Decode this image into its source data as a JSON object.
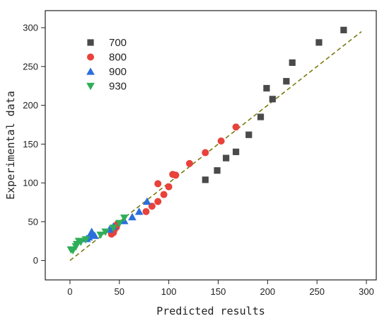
{
  "chart_data": {
    "type": "scatter",
    "xlabel": "Predicted results",
    "ylabel": "Experimental data",
    "xlim": [
      -25,
      310
    ],
    "ylim": [
      -25,
      322
    ],
    "xticks": [
      0,
      50,
      100,
      150,
      200,
      250,
      300
    ],
    "yticks": [
      0,
      50,
      100,
      150,
      200,
      250,
      300
    ],
    "legend_position": "top-left",
    "reference_line": {
      "x": [
        0,
        295
      ],
      "y": [
        0,
        295
      ],
      "style": "dashed",
      "color": "#7a7a10"
    },
    "series": [
      {
        "name": "700",
        "marker": "square",
        "color": "#4a4a4a",
        "points": [
          [
            137,
            104
          ],
          [
            149,
            116
          ],
          [
            158,
            132
          ],
          [
            168,
            140
          ],
          [
            181,
            162
          ],
          [
            193,
            185
          ],
          [
            199,
            222
          ],
          [
            205,
            208
          ],
          [
            219,
            231
          ],
          [
            225,
            255
          ],
          [
            252,
            281
          ],
          [
            277,
            297
          ]
        ]
      },
      {
        "name": "800",
        "marker": "circle",
        "color": "#e8423b",
        "points": [
          [
            42,
            34
          ],
          [
            44,
            36
          ],
          [
            45,
            40
          ],
          [
            47,
            43
          ],
          [
            48,
            47
          ],
          [
            77,
            63
          ],
          [
            83,
            70
          ],
          [
            89,
            76
          ],
          [
            95,
            85
          ],
          [
            100,
            95
          ],
          [
            89,
            99
          ],
          [
            104,
            111
          ],
          [
            107,
            110
          ],
          [
            121,
            125
          ],
          [
            137,
            139
          ],
          [
            153,
            154
          ],
          [
            168,
            172
          ]
        ]
      },
      {
        "name": "900",
        "marker": "triangle-up",
        "color": "#2a6fdb",
        "points": [
          [
            17,
            28
          ],
          [
            19,
            30
          ],
          [
            21,
            33
          ],
          [
            22,
            37
          ],
          [
            25,
            32
          ],
          [
            40,
            40
          ],
          [
            44,
            44
          ],
          [
            55,
            51
          ],
          [
            63,
            56
          ],
          [
            70,
            63
          ],
          [
            78,
            76
          ]
        ]
      },
      {
        "name": "930",
        "marker": "triangle-down",
        "color": "#2fae5a",
        "points": [
          [
            1,
            14
          ],
          [
            3,
            13
          ],
          [
            6,
            18
          ],
          [
            7,
            21
          ],
          [
            9,
            25
          ],
          [
            11,
            24
          ],
          [
            16,
            27
          ],
          [
            31,
            33
          ],
          [
            36,
            37
          ],
          [
            44,
            42
          ],
          [
            50,
            48
          ],
          [
            55,
            55
          ]
        ]
      }
    ]
  }
}
